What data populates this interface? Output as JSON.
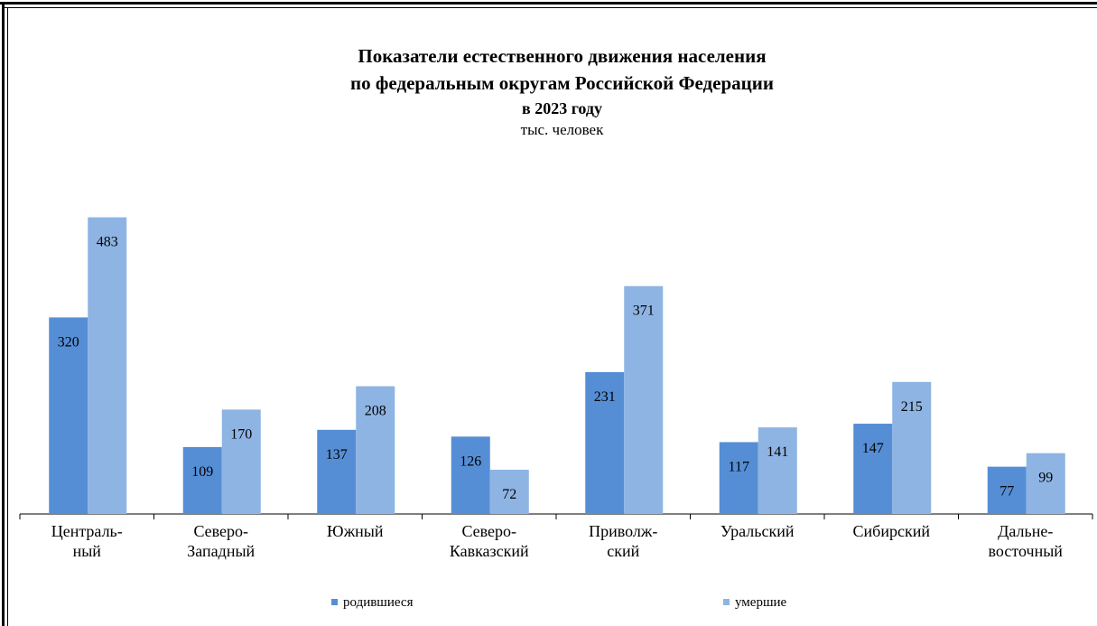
{
  "chart_data": {
    "type": "bar",
    "title": "Показатели  естественного  движения населения",
    "title_line2": "по федеральным  округам  Российской  Федерации",
    "subtitle": "в  2023  году",
    "unit": "тыс. человек",
    "categories": [
      [
        "Централь-",
        "ный"
      ],
      [
        "Северо-",
        "Западный"
      ],
      [
        "Южный"
      ],
      [
        "Северо-",
        "Кавказский"
      ],
      [
        "Приволж-",
        "ский"
      ],
      [
        "Уральский"
      ],
      [
        "Сибирский"
      ],
      [
        "Дальне-",
        "восточный"
      ]
    ],
    "series": [
      {
        "name": "родившиеся",
        "color": "#558ed5",
        "values": [
          320,
          109,
          137,
          126,
          231,
          117,
          147,
          77
        ]
      },
      {
        "name": "умершие",
        "color": "#8eb4e3",
        "values": [
          483,
          170,
          208,
          72,
          371,
          141,
          215,
          99
        ]
      }
    ],
    "ylim": [
      0,
      500
    ],
    "grid": false,
    "legend": "bottom"
  }
}
